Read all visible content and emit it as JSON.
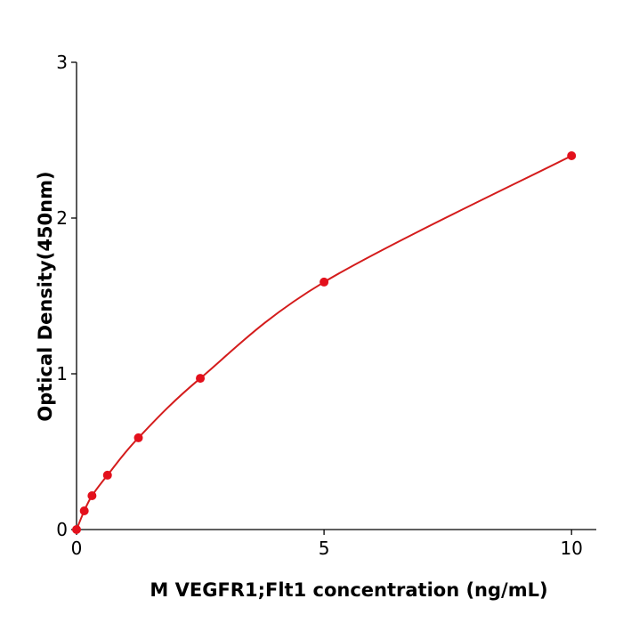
{
  "chart_data": {
    "type": "scatter",
    "x_label": "M  VEGFR1;Flt1 concentration (ng/mL)",
    "y_label": "Optical Density(450nm)",
    "xlim": [
      0,
      10.5
    ],
    "ylim": [
      0,
      3
    ],
    "xticks": [
      0,
      5,
      10
    ],
    "yticks": [
      0,
      1,
      2,
      3
    ],
    "fit_curve": true,
    "series": [
      {
        "color": "#e3101c",
        "line_color": "#d41c1c",
        "x": [
          0,
          0.156,
          0.3125,
          0.625,
          1.25,
          2.5,
          5,
          10
        ],
        "values": [
          0.0,
          0.12,
          0.217,
          0.349,
          0.589,
          0.971,
          1.589,
          2.4
        ]
      }
    ]
  }
}
